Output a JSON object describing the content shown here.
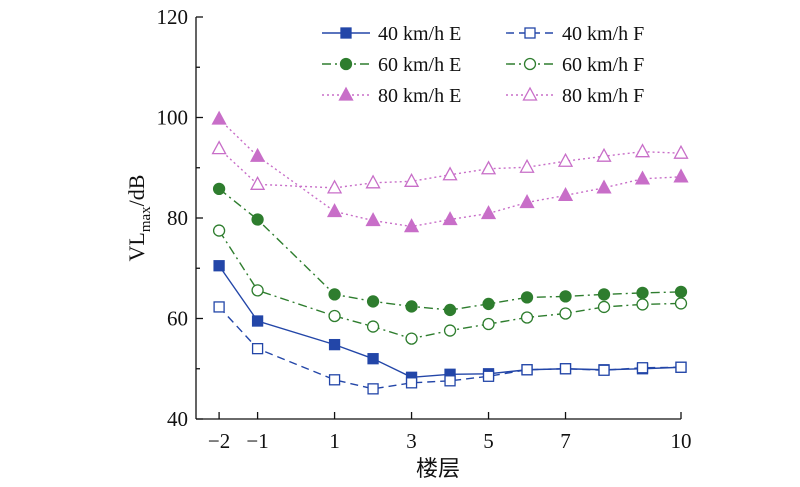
{
  "chart_data": {
    "type": "line",
    "xlabel": "楼层",
    "ylabel": "VLmax/dB",
    "ylabel_parts": {
      "main": "VL",
      "sub": "max",
      "unit": "/dB"
    },
    "xlim": [
      -2.6,
      10
    ],
    "ylim": [
      40,
      120
    ],
    "x_ticks": [
      -2,
      -1,
      1,
      3,
      5,
      7,
      10
    ],
    "x_tick_labels": [
      "−2",
      "−1",
      "1",
      "3",
      "5",
      "7",
      "10"
    ],
    "y_ticks": [
      40,
      60,
      80,
      100,
      120
    ],
    "y_tick_labels": [
      "40",
      "60",
      "80",
      "100",
      "120"
    ],
    "grid": false,
    "legend": {
      "placement": "top-right",
      "columns": 2
    },
    "series": [
      {
        "name": "40 km/h E",
        "color": "#2346a8",
        "marker": "square",
        "filled": true,
        "dash": "solid",
        "x": [
          -2,
          -1,
          1,
          2,
          3,
          4,
          5,
          6,
          7,
          8,
          9,
          10
        ],
        "y": [
          70.5,
          59.5,
          54.8,
          52.0,
          48.3,
          48.9,
          49.0,
          49.8,
          50.0,
          49.8,
          50.0,
          50.3
        ]
      },
      {
        "name": "40 km/h F",
        "color": "#2346a8",
        "marker": "square",
        "filled": false,
        "dash": "dashed",
        "x": [
          -2,
          -1,
          1,
          2,
          3,
          4,
          5,
          6,
          7,
          8,
          9,
          10
        ],
        "y": [
          62.3,
          54.0,
          47.8,
          46.0,
          47.2,
          47.6,
          48.5,
          49.8,
          50.0,
          49.7,
          50.2,
          50.3
        ]
      },
      {
        "name": "60 km/h E",
        "color": "#2e7d2e",
        "marker": "circle",
        "filled": true,
        "dash": "dashdot",
        "x": [
          -2,
          -1,
          1,
          2,
          3,
          4,
          5,
          6,
          7,
          8,
          9,
          10
        ],
        "y": [
          85.8,
          79.7,
          64.8,
          63.4,
          62.4,
          61.7,
          62.9,
          64.2,
          64.4,
          64.8,
          65.1,
          65.3
        ]
      },
      {
        "name": "60 km/h F",
        "color": "#2e7d2e",
        "marker": "circle",
        "filled": false,
        "dash": "dashdot",
        "x": [
          -2,
          -1,
          1,
          2,
          3,
          4,
          5,
          6,
          7,
          8,
          9,
          10
        ],
        "y": [
          77.5,
          65.6,
          60.5,
          58.4,
          56.0,
          57.6,
          58.9,
          60.2,
          61.0,
          62.3,
          62.8,
          63.0
        ]
      },
      {
        "name": "80 km/h E",
        "color": "#c86ec8",
        "marker": "triangle",
        "filled": true,
        "dash": "dotted",
        "x": [
          -2,
          -1,
          1,
          2,
          3,
          4,
          5,
          6,
          7,
          8,
          9,
          10
        ],
        "y": [
          99.7,
          92.3,
          81.3,
          79.5,
          78.3,
          79.7,
          80.9,
          83.1,
          84.5,
          86.0,
          87.8,
          88.2
        ]
      },
      {
        "name": "80 km/h F",
        "color": "#c86ec8",
        "marker": "triangle",
        "filled": false,
        "dash": "dotted",
        "x": [
          -2,
          -1,
          1,
          2,
          3,
          4,
          5,
          6,
          7,
          8,
          9,
          10
        ],
        "y": [
          93.8,
          86.7,
          86.0,
          87.0,
          87.3,
          88.6,
          89.8,
          90.1,
          91.3,
          92.3,
          93.2,
          92.9
        ]
      }
    ]
  }
}
